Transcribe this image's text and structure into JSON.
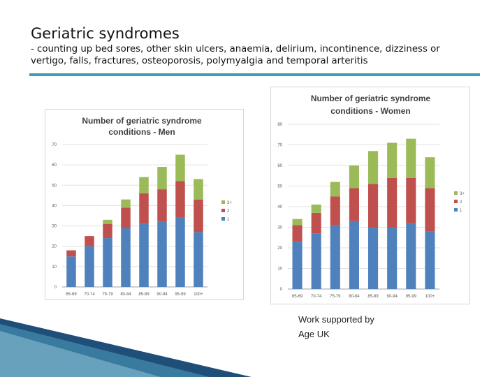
{
  "slide": {
    "title": "Geriatric syndromes",
    "subtitle": "- counting up bed sores, other skin ulcers, anaemia, delirium, incontinence,  dizziness or vertigo, falls, fractures, osteoporosis,  polymyalgia and temporal arteritis",
    "credit_line1": "Work  supported by",
    "credit_line2": "Age UK"
  },
  "colors": {
    "series_1": "#4f81bd",
    "series_2": "#c0504d",
    "series_3": "#9bbb59",
    "accent_rule": "#3aa0b8"
  },
  "chart_data": [
    {
      "type": "bar",
      "stacked": true,
      "title_line1": "Number of geriatric syndrome",
      "title_line2": "conditions - Men",
      "categories": [
        "65-69",
        "70-74",
        "75-79",
        "80-84",
        "85-89",
        "90-94",
        "95-99",
        "100+"
      ],
      "series": [
        {
          "name": "1",
          "values": [
            15,
            20,
            24,
            29,
            31,
            32,
            34,
            27
          ]
        },
        {
          "name": "2",
          "values": [
            3,
            5,
            7,
            10,
            15,
            16,
            18,
            16
          ]
        },
        {
          "name": "3+",
          "values": [
            0,
            0,
            2,
            4,
            8,
            11,
            13,
            10
          ]
        }
      ],
      "legend_order": [
        "3+",
        "2",
        "1"
      ],
      "ylim": [
        0,
        70
      ],
      "yticks": [
        0,
        10,
        20,
        30,
        40,
        50,
        60,
        70
      ],
      "xlabel": "",
      "ylabel": "",
      "legend": "right",
      "grid": true
    },
    {
      "type": "bar",
      "stacked": true,
      "title_line1": "Number of geriatric syndrome",
      "title_line2": "conditions - Women",
      "categories": [
        "65-69",
        "70-74",
        "75-79",
        "80-84",
        "85-89",
        "90-94",
        "95-99",
        "100+"
      ],
      "series": [
        {
          "name": "1",
          "values": [
            23,
            27,
            31,
            33,
            30,
            30,
            32,
            28
          ]
        },
        {
          "name": "2",
          "values": [
            8,
            10,
            14,
            16,
            21,
            24,
            22,
            21
          ]
        },
        {
          "name": "3+",
          "values": [
            3,
            4,
            7,
            11,
            16,
            17,
            19,
            15
          ]
        }
      ],
      "legend_order": [
        "3+",
        "2",
        "1"
      ],
      "ylim": [
        0,
        80
      ],
      "yticks": [
        0,
        10,
        20,
        30,
        40,
        50,
        60,
        70,
        80
      ],
      "xlabel": "",
      "ylabel": "",
      "legend": "right",
      "grid": true
    }
  ]
}
